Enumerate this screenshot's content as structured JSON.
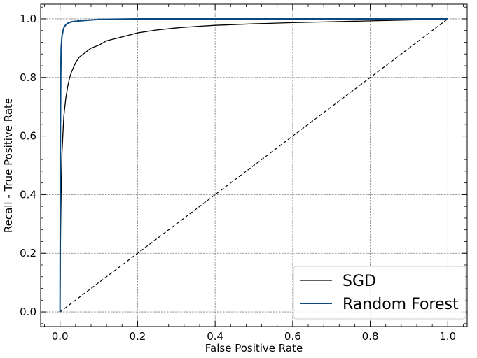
{
  "chart_data": {
    "type": "line",
    "title": "",
    "xlabel": "False Positive Rate",
    "ylabel": "Recall - True Positive Rate",
    "xlim": [
      -0.05,
      1.05
    ],
    "ylim": [
      -0.05,
      1.05
    ],
    "xticks": [
      0.0,
      0.2,
      0.4,
      0.6,
      0.8,
      1.0
    ],
    "yticks": [
      0.0,
      0.2,
      0.4,
      0.6,
      0.8,
      1.0
    ],
    "xtick_labels": [
      "0.0",
      "0.2",
      "0.4",
      "0.6",
      "0.8",
      "1.0"
    ],
    "ytick_labels": [
      "0.0",
      "0.2",
      "0.4",
      "0.6",
      "0.8",
      "1.0"
    ],
    "grid": true,
    "legend_position": "bottom-right",
    "series": [
      {
        "name": "SGD",
        "color": "#000000",
        "x": [
          0.0,
          0.001,
          0.002,
          0.003,
          0.005,
          0.008,
          0.01,
          0.015,
          0.02,
          0.025,
          0.03,
          0.04,
          0.05,
          0.06,
          0.07,
          0.08,
          0.1,
          0.12,
          0.15,
          0.18,
          0.2,
          0.25,
          0.3,
          0.35,
          0.4,
          0.5,
          0.6,
          0.7,
          0.8,
          0.9,
          1.0
        ],
        "y": [
          0.0,
          0.2,
          0.33,
          0.42,
          0.54,
          0.62,
          0.67,
          0.73,
          0.77,
          0.8,
          0.82,
          0.85,
          0.87,
          0.88,
          0.89,
          0.9,
          0.91,
          0.925,
          0.935,
          0.945,
          0.952,
          0.962,
          0.969,
          0.974,
          0.978,
          0.983,
          0.987,
          0.99,
          0.993,
          0.996,
          1.0
        ]
      },
      {
        "name": "Random Forest",
        "color": "#0a4a80",
        "x": [
          0.0,
          0.001,
          0.002,
          0.003,
          0.005,
          0.008,
          0.01,
          0.015,
          0.02,
          0.03,
          0.05,
          0.08,
          0.1,
          0.15,
          0.2,
          0.3,
          0.5,
          0.7,
          1.0
        ],
        "y": [
          0.0,
          0.6,
          0.82,
          0.9,
          0.94,
          0.96,
          0.97,
          0.98,
          0.985,
          0.99,
          0.993,
          0.996,
          0.998,
          0.999,
          1.0,
          1.0,
          1.0,
          1.0,
          1.0
        ]
      }
    ],
    "reference_line": {
      "x": [
        0.0,
        1.0
      ],
      "y": [
        0.0,
        1.0
      ],
      "style": "dashed",
      "color": "#000000"
    }
  }
}
